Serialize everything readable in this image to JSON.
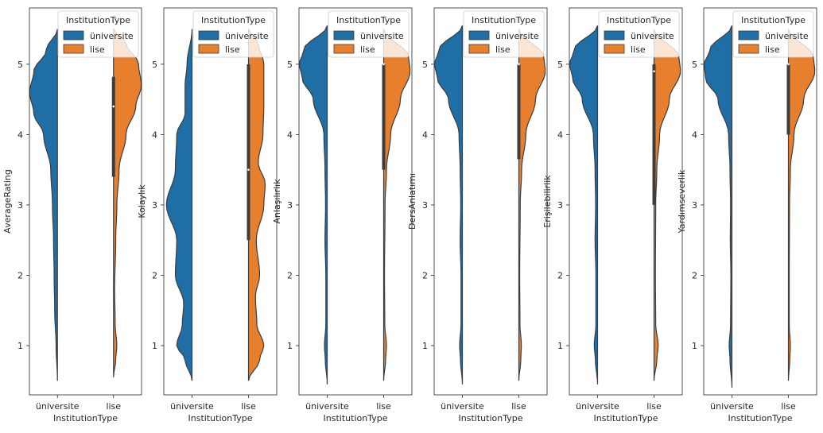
{
  "chart_data": [
    {
      "type": "violin",
      "ylabel": "AverageRating",
      "xlabel": "InstitutionType",
      "categories": [
        "üniversite",
        "lise"
      ],
      "ylim": [
        0.3,
        5.8
      ],
      "yticks": [
        "1",
        "2",
        "3",
        "4",
        "5"
      ],
      "legend": {
        "title": "InstitutionType",
        "entries": [
          "üniversite",
          "lise"
        ],
        "placement": "upper-right"
      },
      "series": [
        {
          "name": "üniversite",
          "color": "#1f6ea6",
          "range": [
            0.5,
            5.5
          ],
          "density": [
            [
              0.5,
              0.0
            ],
            [
              1.0,
              0.05
            ],
            [
              1.5,
              0.1
            ],
            [
              2.0,
              0.12
            ],
            [
              2.5,
              0.14
            ],
            [
              3.0,
              0.18
            ],
            [
              3.5,
              0.24
            ],
            [
              4.0,
              0.5
            ],
            [
              4.3,
              0.85
            ],
            [
              4.6,
              1.0
            ],
            [
              4.9,
              0.85
            ],
            [
              5.2,
              0.4
            ],
            [
              5.5,
              0.0
            ]
          ],
          "quartiles": null
        },
        {
          "name": "lise",
          "color": "#e87f2d",
          "range": [
            0.55,
            5.5
          ],
          "density": [
            [
              0.55,
              0.0
            ],
            [
              0.8,
              0.08
            ],
            [
              1.0,
              0.12
            ],
            [
              1.3,
              0.06
            ],
            [
              1.8,
              0.04
            ],
            [
              2.5,
              0.08
            ],
            [
              3.0,
              0.12
            ],
            [
              3.5,
              0.2
            ],
            [
              4.0,
              0.45
            ],
            [
              4.4,
              0.8
            ],
            [
              4.7,
              1.0
            ],
            [
              5.0,
              0.9
            ],
            [
              5.3,
              0.45
            ],
            [
              5.5,
              0.0
            ]
          ],
          "quartiles": [
            3.4,
            4.4,
            4.82
          ]
        }
      ]
    },
    {
      "type": "violin",
      "ylabel": "Kolaylık",
      "xlabel": "InstitutionType",
      "categories": [
        "üniversite",
        "lise"
      ],
      "ylim": [
        0.3,
        5.8
      ],
      "yticks": [
        "1",
        "2",
        "3",
        "4",
        "5"
      ],
      "legend": {
        "title": "InstitutionType",
        "entries": [
          "üniversite",
          "lise"
        ],
        "placement": "upper-right"
      },
      "series": [
        {
          "name": "üniversite",
          "color": "#1f6ea6",
          "range": [
            0.5,
            5.5
          ],
          "density": [
            [
              0.5,
              0.0
            ],
            [
              0.8,
              0.25
            ],
            [
              1.0,
              0.55
            ],
            [
              1.3,
              0.35
            ],
            [
              1.6,
              0.3
            ],
            [
              2.0,
              0.6
            ],
            [
              2.5,
              0.55
            ],
            [
              3.0,
              0.92
            ],
            [
              3.5,
              0.6
            ],
            [
              4.0,
              0.55
            ],
            [
              4.3,
              0.25
            ],
            [
              4.7,
              0.25
            ],
            [
              5.0,
              0.18
            ],
            [
              5.5,
              0.0
            ]
          ],
          "quartiles": null
        },
        {
          "name": "lise",
          "color": "#e87f2d",
          "range": [
            0.5,
            5.5
          ],
          "density": [
            [
              0.5,
              0.0
            ],
            [
              0.8,
              0.4
            ],
            [
              1.0,
              0.55
            ],
            [
              1.3,
              0.3
            ],
            [
              1.7,
              0.25
            ],
            [
              2.0,
              0.4
            ],
            [
              2.5,
              0.28
            ],
            [
              3.0,
              0.55
            ],
            [
              3.3,
              0.6
            ],
            [
              3.6,
              0.35
            ],
            [
              4.0,
              0.52
            ],
            [
              4.4,
              0.55
            ],
            [
              4.8,
              0.55
            ],
            [
              5.0,
              0.55
            ],
            [
              5.3,
              0.35
            ],
            [
              5.5,
              0.0
            ]
          ],
          "quartiles": [
            2.5,
            3.5,
            5.0
          ]
        }
      ]
    },
    {
      "type": "violin",
      "ylabel": "Anlaşılırlık",
      "xlabel": "InstitutionType",
      "categories": [
        "üniversite",
        "lise"
      ],
      "ylim": [
        0.3,
        5.8
      ],
      "yticks": [
        "1",
        "2",
        "3",
        "4",
        "5"
      ],
      "legend": {
        "title": "InstitutionType",
        "entries": [
          "üniversite",
          "lise"
        ],
        "placement": "upper-right"
      },
      "series": [
        {
          "name": "üniversite",
          "color": "#1f6ea6",
          "range": [
            0.45,
            5.55
          ],
          "density": [
            [
              0.45,
              0.0
            ],
            [
              0.8,
              0.07
            ],
            [
              1.0,
              0.1
            ],
            [
              1.3,
              0.05
            ],
            [
              2.0,
              0.05
            ],
            [
              2.5,
              0.08
            ],
            [
              3.0,
              0.06
            ],
            [
              3.5,
              0.08
            ],
            [
              4.0,
              0.12
            ],
            [
              4.5,
              0.5
            ],
            [
              4.8,
              0.9
            ],
            [
              5.0,
              1.0
            ],
            [
              5.2,
              0.85
            ],
            [
              5.55,
              0.0
            ]
          ],
          "quartiles": null
        },
        {
          "name": "lise",
          "color": "#e87f2d",
          "range": [
            0.5,
            5.5
          ],
          "density": [
            [
              0.5,
              0.0
            ],
            [
              0.8,
              0.07
            ],
            [
              1.0,
              0.1
            ],
            [
              1.3,
              0.04
            ],
            [
              2.0,
              0.03
            ],
            [
              3.0,
              0.05
            ],
            [
              3.5,
              0.1
            ],
            [
              4.0,
              0.25
            ],
            [
              4.5,
              0.6
            ],
            [
              4.9,
              0.95
            ],
            [
              5.1,
              0.9
            ],
            [
              5.5,
              0.0
            ]
          ],
          "quartiles": [
            3.5,
            5.0,
            5.0
          ]
        }
      ]
    },
    {
      "type": "violin",
      "ylabel": "DersAnlatımı",
      "xlabel": "InstitutionType",
      "categories": [
        "üniversite",
        "lise"
      ],
      "ylim": [
        0.3,
        5.8
      ],
      "yticks": [
        "1",
        "2",
        "3",
        "4",
        "5"
      ],
      "legend": {
        "title": "InstitutionType",
        "entries": [
          "üniversite",
          "lise"
        ],
        "placement": "upper-right"
      },
      "series": [
        {
          "name": "üniversite",
          "color": "#1f6ea6",
          "range": [
            0.45,
            5.55
          ],
          "density": [
            [
              0.45,
              0.0
            ],
            [
              0.8,
              0.07
            ],
            [
              1.0,
              0.1
            ],
            [
              1.3,
              0.05
            ],
            [
              2.0,
              0.05
            ],
            [
              2.5,
              0.08
            ],
            [
              3.0,
              0.06
            ],
            [
              3.5,
              0.08
            ],
            [
              4.0,
              0.12
            ],
            [
              4.5,
              0.5
            ],
            [
              4.8,
              0.9
            ],
            [
              5.0,
              1.0
            ],
            [
              5.2,
              0.85
            ],
            [
              5.55,
              0.0
            ]
          ],
          "quartiles": null
        },
        {
          "name": "lise",
          "color": "#e87f2d",
          "range": [
            0.5,
            5.5
          ],
          "density": [
            [
              0.5,
              0.0
            ],
            [
              0.8,
              0.07
            ],
            [
              1.0,
              0.09
            ],
            [
              1.3,
              0.04
            ],
            [
              2.0,
              0.03
            ],
            [
              3.0,
              0.05
            ],
            [
              3.5,
              0.1
            ],
            [
              4.0,
              0.25
            ],
            [
              4.5,
              0.6
            ],
            [
              4.9,
              0.95
            ],
            [
              5.1,
              0.9
            ],
            [
              5.5,
              0.0
            ]
          ],
          "quartiles": [
            3.65,
            5.0,
            5.0
          ]
        }
      ]
    },
    {
      "type": "violin",
      "ylabel": "Erişilebilirlik",
      "xlabel": "InstitutionType",
      "categories": [
        "üniversite",
        "lise"
      ],
      "ylim": [
        0.3,
        5.8
      ],
      "yticks": [
        "1",
        "2",
        "3",
        "4",
        "5"
      ],
      "legend": {
        "title": "InstitutionType",
        "entries": [
          "üniversite",
          "lise"
        ],
        "placement": "upper-right"
      },
      "series": [
        {
          "name": "üniversite",
          "color": "#1f6ea6",
          "range": [
            0.45,
            5.55
          ],
          "density": [
            [
              0.45,
              0.0
            ],
            [
              0.8,
              0.08
            ],
            [
              1.0,
              0.12
            ],
            [
              1.3,
              0.06
            ],
            [
              2.0,
              0.06
            ],
            [
              2.5,
              0.09
            ],
            [
              3.0,
              0.07
            ],
            [
              3.5,
              0.09
            ],
            [
              4.0,
              0.15
            ],
            [
              4.5,
              0.55
            ],
            [
              4.8,
              0.9
            ],
            [
              5.0,
              1.0
            ],
            [
              5.2,
              0.85
            ],
            [
              5.55,
              0.0
            ]
          ],
          "quartiles": null
        },
        {
          "name": "lise",
          "color": "#e87f2d",
          "range": [
            0.5,
            5.5
          ],
          "density": [
            [
              0.5,
              0.0
            ],
            [
              0.8,
              0.1
            ],
            [
              1.0,
              0.15
            ],
            [
              1.3,
              0.06
            ],
            [
              2.0,
              0.05
            ],
            [
              3.0,
              0.06
            ],
            [
              3.5,
              0.1
            ],
            [
              4.0,
              0.2
            ],
            [
              4.5,
              0.55
            ],
            [
              4.9,
              0.95
            ],
            [
              5.1,
              0.9
            ],
            [
              5.5,
              0.0
            ]
          ],
          "quartiles": [
            3.0,
            4.9,
            5.0
          ]
        }
      ]
    },
    {
      "type": "violin",
      "ylabel": "Yardımseverlik",
      "xlabel": "InstitutionType",
      "categories": [
        "üniversite",
        "lise"
      ],
      "ylim": [
        0.3,
        5.8
      ],
      "yticks": [
        "1",
        "2",
        "3",
        "4",
        "5"
      ],
      "legend": {
        "title": "InstitutionType",
        "entries": [
          "üniversite",
          "lise"
        ],
        "placement": "upper-right"
      },
      "series": [
        {
          "name": "üniversite",
          "color": "#1f6ea6",
          "range": [
            0.4,
            5.55
          ],
          "density": [
            [
              0.4,
              0.0
            ],
            [
              0.8,
              0.07
            ],
            [
              1.0,
              0.1
            ],
            [
              1.3,
              0.05
            ],
            [
              2.0,
              0.04
            ],
            [
              2.5,
              0.06
            ],
            [
              3.0,
              0.05
            ],
            [
              3.5,
              0.07
            ],
            [
              4.0,
              0.12
            ],
            [
              4.5,
              0.5
            ],
            [
              4.8,
              0.95
            ],
            [
              5.0,
              1.0
            ],
            [
              5.2,
              0.8
            ],
            [
              5.55,
              0.0
            ]
          ],
          "quartiles": null
        },
        {
          "name": "lise",
          "color": "#e87f2d",
          "range": [
            0.5,
            5.5
          ],
          "density": [
            [
              0.5,
              0.0
            ],
            [
              0.8,
              0.05
            ],
            [
              1.0,
              0.07
            ],
            [
              1.3,
              0.03
            ],
            [
              2.0,
              0.03
            ],
            [
              3.0,
              0.04
            ],
            [
              3.5,
              0.07
            ],
            [
              4.0,
              0.2
            ],
            [
              4.5,
              0.55
            ],
            [
              4.9,
              0.95
            ],
            [
              5.1,
              0.9
            ],
            [
              5.5,
              0.0
            ]
          ],
          "quartiles": [
            4.0,
            5.0,
            5.0
          ]
        }
      ]
    }
  ]
}
